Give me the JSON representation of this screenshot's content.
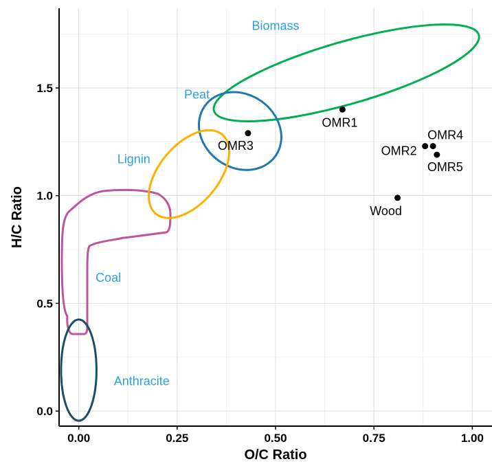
{
  "chart_data": {
    "type": "scatter",
    "title": "",
    "xlabel": "O/C Ratio",
    "ylabel": "H/C Ratio",
    "xlim": [
      -0.05,
      1.05
    ],
    "ylim": [
      -0.07,
      1.87
    ],
    "xticks": [
      0.0,
      0.25,
      0.5,
      0.75,
      1.0
    ],
    "xtick_labels": [
      "0.00",
      "0.25",
      "0.50",
      "0.75",
      "1.00"
    ],
    "yticks": [
      0.0,
      0.5,
      1.0,
      1.5
    ],
    "ytick_labels": [
      "0.0",
      "0.5",
      "1.0",
      "1.5"
    ],
    "grid": true,
    "points": [
      {
        "label": "OMR1",
        "x": 0.67,
        "y": 1.4
      },
      {
        "label": "OMR2",
        "x": 0.88,
        "y": 1.23
      },
      {
        "label": "OMR3",
        "x": 0.43,
        "y": 1.29
      },
      {
        "label": "OMR4",
        "x": 0.9,
        "y": 1.23
      },
      {
        "label": "OMR5",
        "x": 0.91,
        "y": 1.19
      },
      {
        "label": "Wood",
        "x": 0.81,
        "y": 0.99
      }
    ],
    "regions": [
      {
        "name": "Biomass",
        "color": "#00b050",
        "shape": "ellipse",
        "center": [
          0.68,
          1.57
        ],
        "radii": [
          0.35,
          0.145
        ],
        "rotation_deg": -16
      },
      {
        "name": "Peat",
        "color": "#1f77b4",
        "shape": "ellipse",
        "center": [
          0.41,
          1.3
        ],
        "radii": [
          0.11,
          0.17
        ],
        "rotation_deg": 35
      },
      {
        "name": "Lignin",
        "color": "#ffb000",
        "shape": "ellipse",
        "center": [
          0.28,
          1.1
        ],
        "radii": [
          0.075,
          0.24
        ],
        "rotation_deg": 40
      },
      {
        "name": "Coal",
        "color": "#c0549a",
        "shape": "outline"
      },
      {
        "name": "Anthracite",
        "color": "#1a4d66",
        "shape": "ellipse",
        "center": [
          0.0,
          0.19
        ],
        "radii": [
          0.045,
          0.235
        ],
        "rotation_deg": 0
      }
    ],
    "region_label_color": "#29a3e0"
  }
}
